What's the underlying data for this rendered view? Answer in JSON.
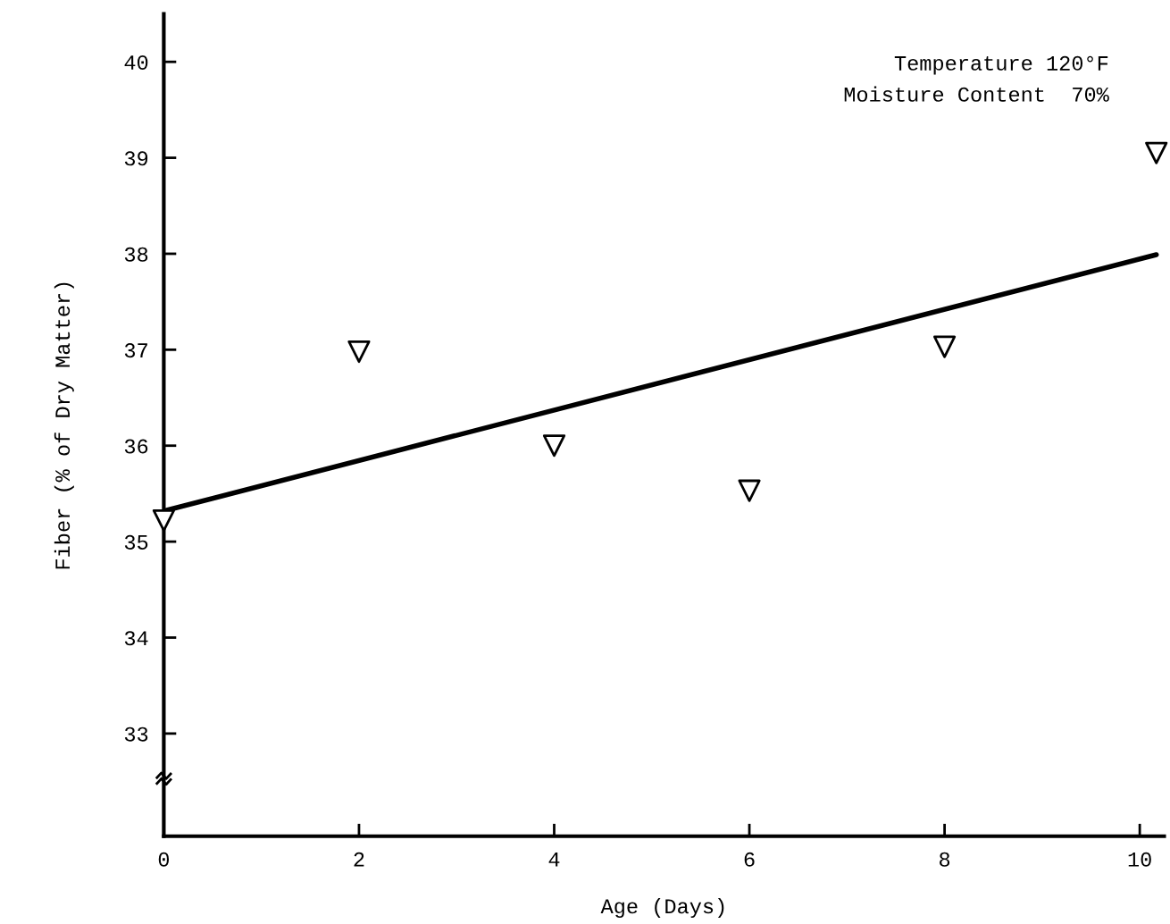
{
  "chart_data": {
    "type": "scatter",
    "xlabel": "Age (Days)",
    "ylabel": "Fiber (% of Dry Matter)",
    "annotations": [
      "Temperature 120°F",
      "Moisture Content  70%"
    ],
    "grid": false,
    "legend": false,
    "xlim": [
      0,
      10.25
    ],
    "ylim": [
      31.93,
      40.5
    ],
    "xticks": [
      0,
      2,
      4,
      6,
      8,
      10
    ],
    "yticks": [
      33,
      34,
      35,
      36,
      37,
      38,
      39,
      40
    ],
    "series": [
      {
        "marker": "triangle",
        "color": "#000000",
        "x": [
          0,
          2,
          4,
          6,
          8,
          10.17
        ],
        "values": [
          35.22,
          36.98,
          36.0,
          35.53,
          37.03,
          39.05
        ]
      },
      {
        "type": "line",
        "color": "#000000",
        "line_style": "solid",
        "x": [
          0,
          10.17
        ],
        "values": [
          35.32,
          37.99
        ]
      }
    ]
  }
}
